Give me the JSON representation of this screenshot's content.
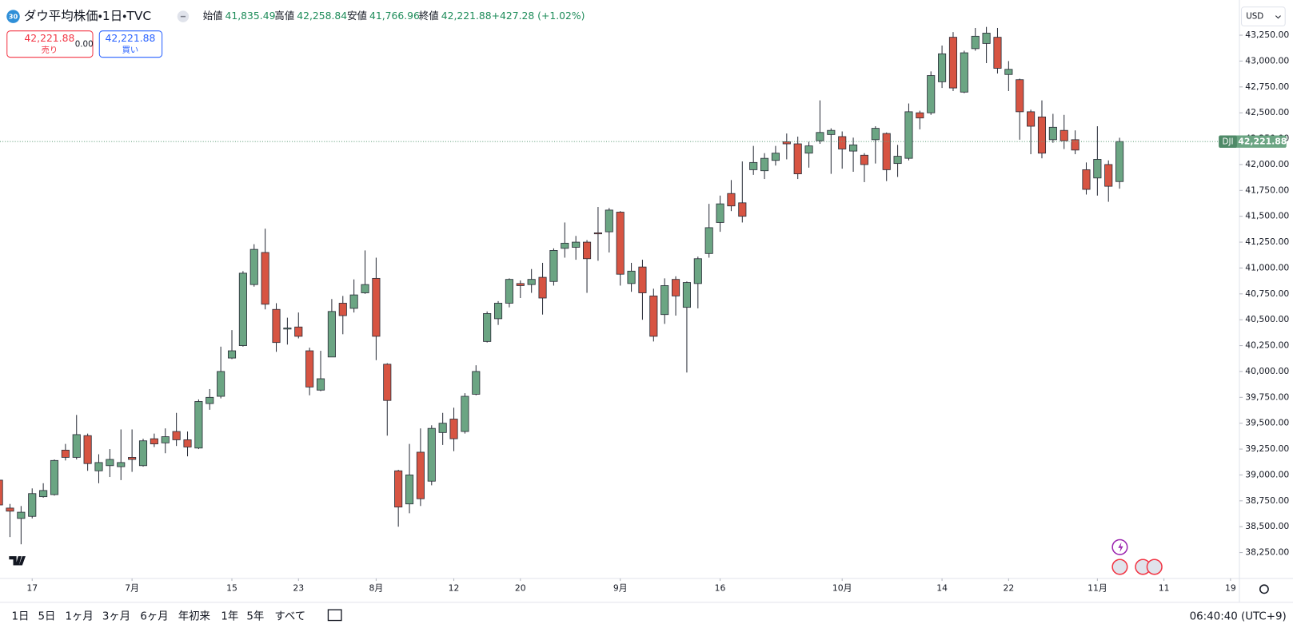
{
  "toolbar": {
    "symbol_badge": "30",
    "title": "ダウ平均株価・1日・TVC",
    "ohlc": [
      {
        "label": "始値",
        "value": "41,835.49"
      },
      {
        "label": "高値",
        "value": "42,258.84"
      },
      {
        "label": "安値",
        "value": "41,766.96"
      },
      {
        "label": "終値",
        "value": "42,221.88"
      }
    ],
    "change": "+427.28 (+1.02%)",
    "sell": {
      "price": "42,221.88",
      "label": "売り"
    },
    "spread": "0.00",
    "buy": {
      "price": "42,221.88",
      "label": "買い"
    },
    "currency": "USD"
  },
  "chart_data": {
    "type": "candlestick",
    "symbol_tag": "DJI",
    "last_price_label": "42,221.88",
    "up_color": "#6ba583",
    "down_color": "#d75442",
    "border_color": "#2a2e39",
    "open": [
      38950,
      38680,
      38580,
      38600,
      38790,
      38810,
      39240,
      39170,
      39380,
      39040,
      39090,
      39080,
      39170,
      39090,
      39350,
      39310,
      39420,
      39340,
      39260,
      39690,
      39760,
      40130,
      40250,
      40840,
      41150,
      40600,
      40410,
      40430,
      40200,
      39820,
      40140,
      40660,
      40610,
      40760,
      40900,
      40070,
      39040,
      38720,
      39220,
      38940,
      39410,
      39540,
      39420,
      39780,
      40290,
      40510,
      40660,
      40850,
      40840,
      40910,
      40870,
      41190,
      41200,
      41250,
      41340,
      41350,
      41540,
      40850,
      41010,
      40730,
      40550,
      40890,
      40620,
      40850,
      41140,
      41440,
      41720,
      41630,
      41950,
      41940,
      42040,
      42220,
      42200,
      42110,
      42230,
      42290,
      42270,
      42130,
      42090,
      42240,
      42300,
      42010,
      42060,
      42500,
      42500,
      42800,
      43230,
      42700,
      43120,
      43170,
      43230,
      42870,
      42820,
      42510,
      42460,
      42240,
      42330,
      42240,
      41950,
      41870,
      42000,
      41835.49
    ],
    "high": [
      38980,
      38720,
      38700,
      38870,
      38920,
      39150,
      39300,
      39580,
      39400,
      39200,
      39250,
      39440,
      39440,
      39350,
      39400,
      39450,
      39600,
      39420,
      39730,
      39830,
      40240,
      40400,
      40970,
      41230,
      41380,
      40660,
      40520,
      40570,
      40230,
      40200,
      40700,
      40730,
      40890,
      41170,
      41100,
      40080,
      39050,
      39300,
      39450,
      39480,
      39600,
      39650,
      39790,
      40060,
      40580,
      40680,
      40900,
      40880,
      40990,
      41050,
      41190,
      41440,
      41310,
      41270,
      41590,
      41580,
      41550,
      41050,
      41080,
      40800,
      40900,
      40920,
      40870,
      41110,
      41620,
      41700,
      41850,
      42030,
      42180,
      42110,
      42180,
      42300,
      42270,
      42220,
      42620,
      42350,
      42320,
      42260,
      42110,
      42370,
      42310,
      42190,
      42590,
      42520,
      42900,
      43150,
      43280,
      43100,
      43320,
      43330,
      43320,
      43000,
      42830,
      42530,
      42620,
      42490,
      42480,
      42330,
      42020,
      42370,
      42040,
      42258.84
    ],
    "low": [
      38690,
      38400,
      38330,
      38580,
      38780,
      38800,
      39140,
      39150,
      39040,
      38920,
      38980,
      38950,
      39030,
      39080,
      39270,
      39210,
      39280,
      39180,
      39250,
      39630,
      39740,
      40120,
      40240,
      40820,
      40600,
      40190,
      40260,
      40320,
      39770,
      39810,
      40140,
      40360,
      40570,
      40750,
      40110,
      39380,
      38500,
      38630,
      38700,
      38900,
      39290,
      39230,
      39400,
      39770,
      40280,
      40450,
      40620,
      40710,
      40760,
      40550,
      40830,
      41100,
      41080,
      40760,
      41070,
      41150,
      40830,
      40770,
      40500,
      40290,
      40460,
      40540,
      39990,
      40610,
      41100,
      41350,
      41550,
      41440,
      41900,
      41860,
      41990,
      42050,
      41860,
      41970,
      42200,
      41910,
      41960,
      41930,
      41830,
      42010,
      41840,
      41880,
      42040,
      42340,
      42480,
      42740,
      42710,
      42690,
      43100,
      42980,
      42880,
      42710,
      42240,
      42100,
      42060,
      42210,
      42150,
      42100,
      41710,
      41700,
      41640,
      41766.96
    ],
    "close": [
      38710,
      38650,
      38640,
      38820,
      38850,
      39140,
      39170,
      39390,
      39110,
      39120,
      39150,
      39120,
      39150,
      39330,
      39300,
      39370,
      39340,
      39270,
      39710,
      39750,
      40000,
      40200,
      40950,
      41180,
      40650,
      40280,
      40420,
      40340,
      39850,
      39930,
      40580,
      40540,
      40740,
      40840,
      40340,
      39720,
      38690,
      39000,
      38770,
      39450,
      39500,
      39350,
      39760,
      40000,
      40560,
      40660,
      40890,
      40830,
      40890,
      40710,
      41170,
      41240,
      41250,
      41090,
      41330,
      41560,
      40940,
      40970,
      40760,
      40340,
      40830,
      40730,
      40860,
      41090,
      41390,
      41620,
      41600,
      41500,
      42020,
      42060,
      42110,
      42200,
      41910,
      42180,
      42310,
      42330,
      42150,
      42190,
      42000,
      42350,
      41950,
      42080,
      42510,
      42450,
      42860,
      43070,
      42740,
      43080,
      43240,
      43270,
      42930,
      42920,
      42510,
      42370,
      42110,
      42360,
      42230,
      42140,
      41760,
      42050,
      41790,
      42221.88
    ],
    "xlim": [
      0.1,
      111.8
    ],
    "xticks": [
      {
        "value": 3,
        "label": "17"
      },
      {
        "value": 12,
        "label": "7月"
      },
      {
        "value": 21,
        "label": "15"
      },
      {
        "value": 27,
        "label": "23"
      },
      {
        "value": 34,
        "label": "8月"
      },
      {
        "value": 41,
        "label": "12"
      },
      {
        "value": 47,
        "label": "20"
      },
      {
        "value": 56,
        "label": "9月"
      },
      {
        "value": 65,
        "label": "16"
      },
      {
        "value": 76,
        "label": "10月"
      },
      {
        "value": 85,
        "label": "14"
      },
      {
        "value": 91,
        "label": "22"
      },
      {
        "value": 99,
        "label": "11月"
      },
      {
        "value": 105,
        "label": "11"
      },
      {
        "value": 111,
        "label": "19"
      }
    ],
    "ylim": [
      38000,
      43590
    ],
    "yticks": [
      {
        "value": 38250,
        "label": "38,250.00"
      },
      {
        "value": 38500,
        "label": "38,500.00"
      },
      {
        "value": 38750,
        "label": "38,750.00"
      },
      {
        "value": 39000,
        "label": "39,000.00"
      },
      {
        "value": 39250,
        "label": "39,250.00"
      },
      {
        "value": 39500,
        "label": "39,500.00"
      },
      {
        "value": 39750,
        "label": "39,750.00"
      },
      {
        "value": 40000,
        "label": "40,000.00"
      },
      {
        "value": 40250,
        "label": "40,250.00"
      },
      {
        "value": 40500,
        "label": "40,500.00"
      },
      {
        "value": 40750,
        "label": "40,750.00"
      },
      {
        "value": 41000,
        "label": "41,000.00"
      },
      {
        "value": 41250,
        "label": "41,250.00"
      },
      {
        "value": 41500,
        "label": "41,500.00"
      },
      {
        "value": 41750,
        "label": "41,750.00"
      },
      {
        "value": 42000,
        "label": "42,000.00"
      },
      {
        "value": 42250,
        "label": "42,250.00"
      },
      {
        "value": 42500,
        "label": "42,500.00"
      },
      {
        "value": 42750,
        "label": "42,750.00"
      },
      {
        "value": 43000,
        "label": "43,000.00"
      },
      {
        "value": 43250,
        "label": "43,250.00"
      }
    ],
    "grid": false
  },
  "bottom_bar": {
    "ranges": [
      "1日",
      "5日",
      "1ヶ月",
      "3ヶ月",
      "6ヶ月",
      "年初来",
      "1年",
      "5年",
      "すべて"
    ],
    "time": "06:40:40 (UTC+9)"
  }
}
